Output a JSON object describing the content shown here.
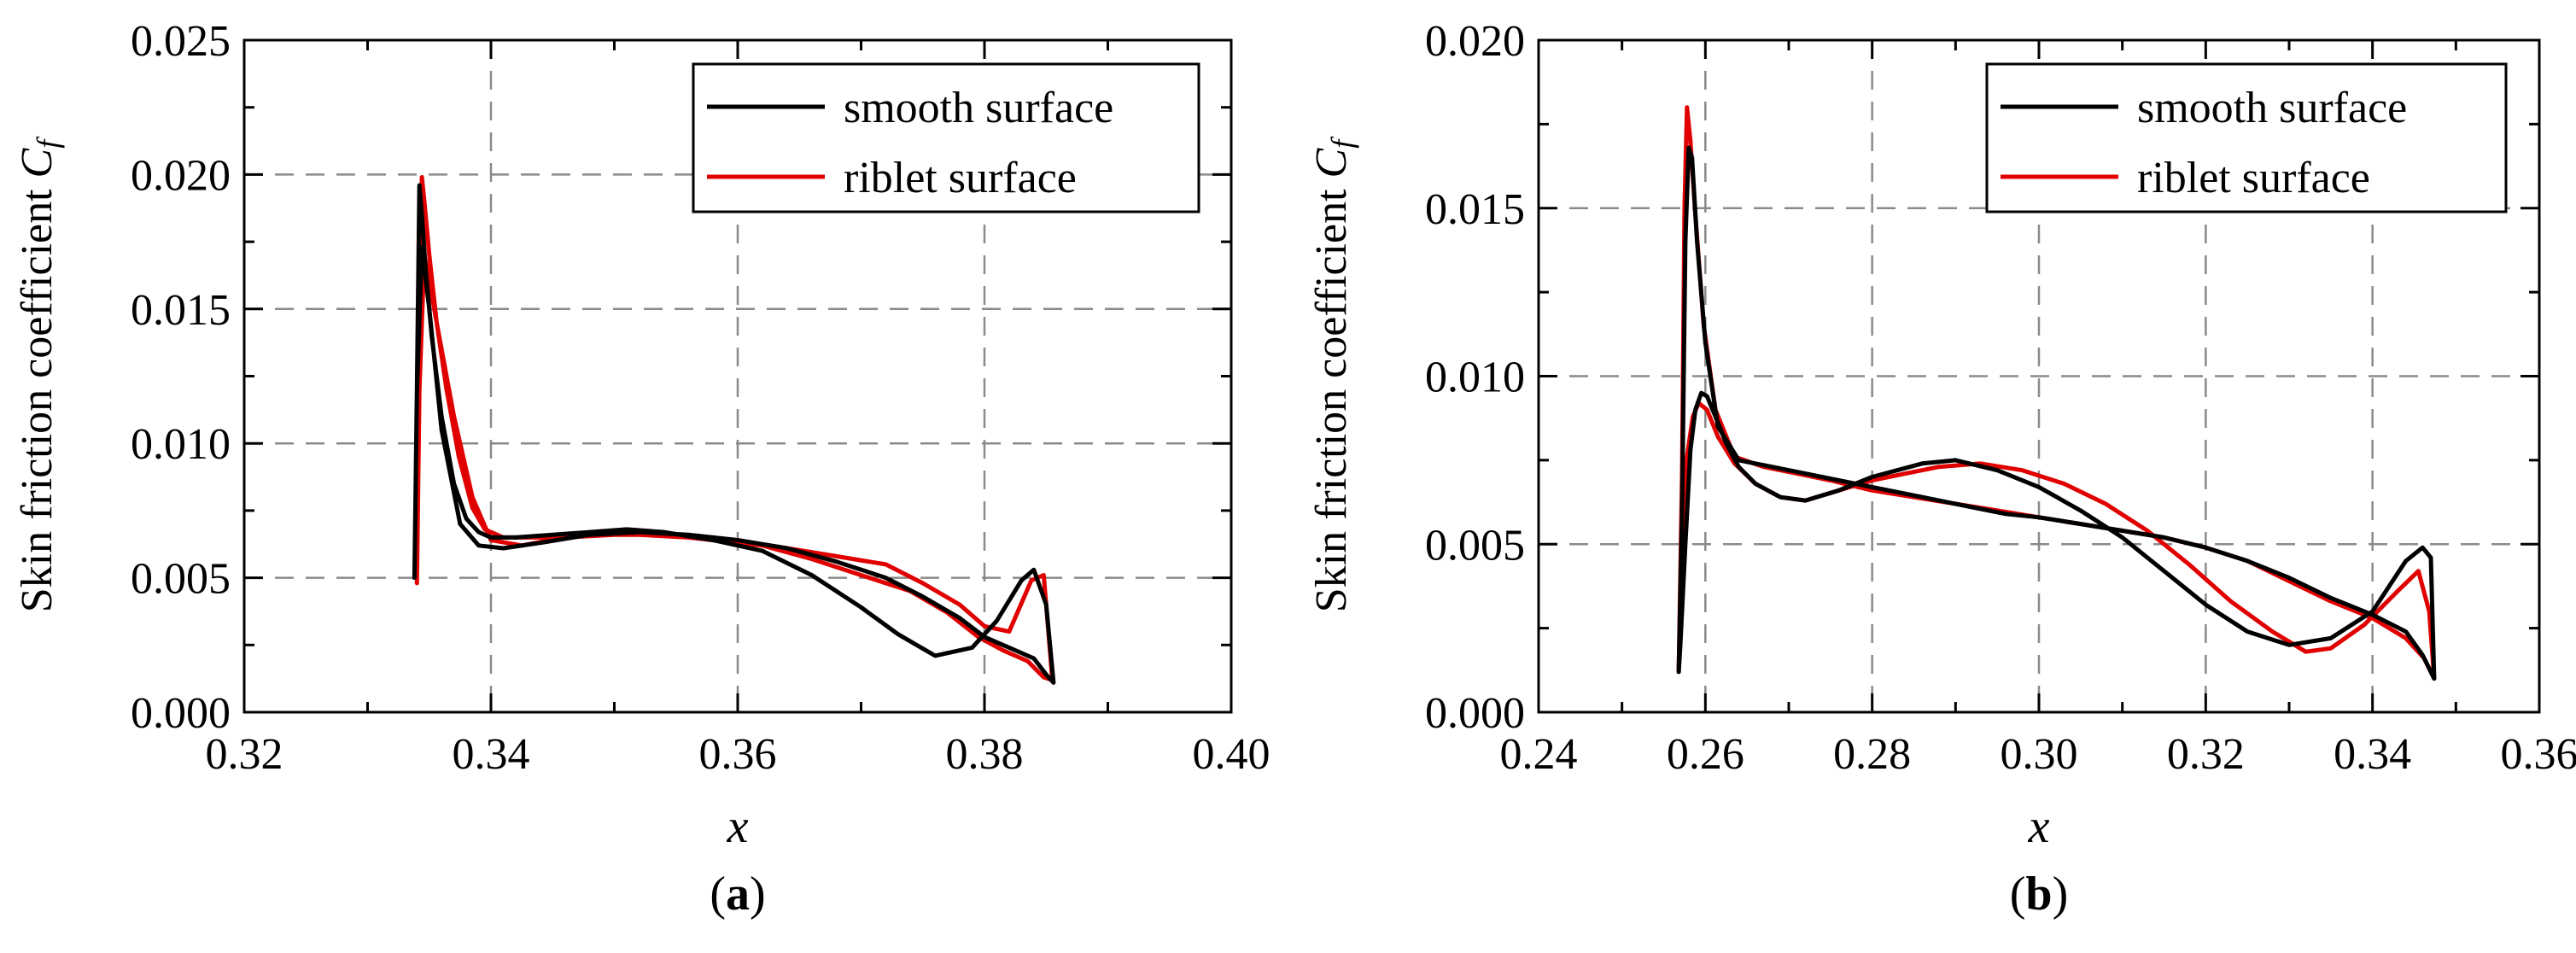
{
  "chart_data": [
    {
      "type": "line",
      "panel_label": "(a)",
      "panel_letter": "a",
      "xlabel": "x",
      "ylabel_main": "Skin friction coefficient ",
      "ylabel_symbol": "C",
      "ylabel_subscript": "f",
      "xlim": [
        0.32,
        0.4
      ],
      "ylim": [
        0.0,
        0.025
      ],
      "xticks": [
        "0.32",
        "0.34",
        "0.36",
        "0.38",
        "0.40"
      ],
      "yticks": [
        "0.000",
        "0.005",
        "0.010",
        "0.015",
        "0.020",
        "0.025"
      ],
      "grid": true,
      "legend_position": "top-right",
      "series": [
        {
          "name": "smooth surface",
          "color": "#000000",
          "x": [
            0.3338,
            0.334,
            0.3342,
            0.3344,
            0.3347,
            0.3352,
            0.336,
            0.337,
            0.338,
            0.339,
            0.34,
            0.342,
            0.345,
            0.348,
            0.351,
            0.354,
            0.358,
            0.362,
            0.366,
            0.37,
            0.373,
            0.376,
            0.379,
            0.381,
            0.383,
            0.384,
            0.385,
            0.3856,
            0.385,
            0.384,
            0.382,
            0.38,
            0.378,
            0.375,
            0.372,
            0.368,
            0.364,
            0.36,
            0.356,
            0.352,
            0.348,
            0.344,
            0.341,
            0.339,
            0.3375,
            0.336,
            0.335,
            0.3344,
            0.334,
            0.3338
          ],
          "y": [
            0.005,
            0.012,
            0.0196,
            0.0185,
            0.0165,
            0.014,
            0.011,
            0.0085,
            0.0072,
            0.0067,
            0.0065,
            0.0065,
            0.0066,
            0.0067,
            0.0068,
            0.0067,
            0.0064,
            0.006,
            0.0051,
            0.0039,
            0.0029,
            0.0021,
            0.0024,
            0.0034,
            0.0049,
            0.0053,
            0.004,
            0.0011,
            0.0014,
            0.002,
            0.0024,
            0.0028,
            0.0035,
            0.0043,
            0.005,
            0.0056,
            0.0061,
            0.0064,
            0.0066,
            0.0067,
            0.0066,
            0.0063,
            0.0061,
            0.0062,
            0.007,
            0.0105,
            0.015,
            0.0173,
            0.012,
            0.005
          ]
        },
        {
          "name": "riblet surface",
          "color": "#e00000",
          "x": [
            0.334,
            0.3342,
            0.3344,
            0.3346,
            0.335,
            0.3356,
            0.3364,
            0.3374,
            0.3385,
            0.3395,
            0.341,
            0.344,
            0.348,
            0.352,
            0.356,
            0.36,
            0.364,
            0.368,
            0.372,
            0.375,
            0.378,
            0.38,
            0.382,
            0.3838,
            0.3848,
            0.3855,
            0.3848,
            0.3835,
            0.3815,
            0.3795,
            0.377,
            0.374,
            0.37,
            0.366,
            0.362,
            0.358,
            0.354,
            0.35,
            0.346,
            0.3425,
            0.34,
            0.3385,
            0.337,
            0.3358,
            0.335,
            0.3346,
            0.3342,
            0.334
          ],
          "y": [
            0.0048,
            0.014,
            0.0199,
            0.019,
            0.017,
            0.0145,
            0.012,
            0.0095,
            0.0076,
            0.0068,
            0.0065,
            0.0065,
            0.0066,
            0.0066,
            0.0065,
            0.0063,
            0.0061,
            0.0058,
            0.0055,
            0.0048,
            0.004,
            0.0032,
            0.003,
            0.0049,
            0.0051,
            0.0012,
            0.0013,
            0.0019,
            0.0023,
            0.0028,
            0.0037,
            0.0045,
            0.0051,
            0.0057,
            0.0062,
            0.0065,
            0.0066,
            0.0066,
            0.0065,
            0.0062,
            0.0064,
            0.008,
            0.011,
            0.014,
            0.016,
            0.017,
            0.012,
            0.0048
          ]
        }
      ]
    },
    {
      "type": "line",
      "panel_label": "(b)",
      "panel_letter": "b",
      "xlabel": "x",
      "ylabel_main": "Skin friction coefficient ",
      "ylabel_symbol": "C",
      "ylabel_subscript": "f",
      "xlim": [
        0.24,
        0.36
      ],
      "ylim": [
        0.0,
        0.02
      ],
      "xticks": [
        "0.24",
        "0.26",
        "0.28",
        "0.30",
        "0.32",
        "0.34",
        "0.36"
      ],
      "yticks": [
        "0.000",
        "0.005",
        "0.010",
        "0.015",
        "0.020"
      ],
      "grid": true,
      "legend_position": "top-right",
      "series": [
        {
          "name": "smooth surface",
          "color": "#000000",
          "x": [
            0.2568,
            0.2572,
            0.2576,
            0.258,
            0.2584,
            0.259,
            0.26,
            0.2615,
            0.264,
            0.268,
            0.272,
            0.276,
            0.28,
            0.284,
            0.288,
            0.292,
            0.296,
            0.3,
            0.305,
            0.31,
            0.315,
            0.32,
            0.325,
            0.33,
            0.335,
            0.34,
            0.344,
            0.346,
            0.3474,
            0.347,
            0.346,
            0.344,
            0.34,
            0.335,
            0.33,
            0.325,
            0.32,
            0.315,
            0.31,
            0.305,
            0.3,
            0.295,
            0.29,
            0.286,
            0.283,
            0.28,
            0.276,
            0.272,
            0.269,
            0.266,
            0.264,
            0.2625,
            0.2612,
            0.2602,
            0.2595,
            0.2588,
            0.2582,
            0.2576,
            0.257,
            0.2568
          ],
          "y": [
            0.0012,
            0.006,
            0.014,
            0.0168,
            0.0165,
            0.014,
            0.011,
            0.0085,
            0.0075,
            0.0073,
            0.0071,
            0.0069,
            0.0067,
            0.0065,
            0.0063,
            0.0061,
            0.0059,
            0.0058,
            0.0056,
            0.0054,
            0.0052,
            0.0049,
            0.0045,
            0.004,
            0.0034,
            0.0029,
            0.0024,
            0.0017,
            0.001,
            0.0046,
            0.0049,
            0.0045,
            0.003,
            0.0022,
            0.002,
            0.0024,
            0.0032,
            0.0042,
            0.0052,
            0.006,
            0.0067,
            0.0072,
            0.0075,
            0.0074,
            0.0072,
            0.007,
            0.0066,
            0.0063,
            0.0064,
            0.0068,
            0.0073,
            0.008,
            0.0088,
            0.0094,
            0.0095,
            0.009,
            0.0078,
            0.005,
            0.002,
            0.0012
          ]
        },
        {
          "name": "riblet surface",
          "color": "#e00000",
          "x": [
            0.2568,
            0.2572,
            0.2575,
            0.2578,
            0.2582,
            0.2588,
            0.2598,
            0.2612,
            0.2635,
            0.267,
            0.271,
            0.275,
            0.28,
            0.285,
            0.29,
            0.295,
            0.3,
            0.305,
            0.31,
            0.315,
            0.32,
            0.325,
            0.33,
            0.335,
            0.34,
            0.344,
            0.3462,
            0.3474,
            0.3468,
            0.3455,
            0.343,
            0.339,
            0.335,
            0.332,
            0.328,
            0.323,
            0.318,
            0.313,
            0.308,
            0.303,
            0.298,
            0.293,
            0.288,
            0.284,
            0.28,
            0.276,
            0.272,
            0.269,
            0.266,
            0.2635,
            0.2615,
            0.2602,
            0.2592,
            0.2585,
            0.2578,
            0.2572,
            0.2568
          ],
          "y": [
            0.0012,
            0.007,
            0.015,
            0.018,
            0.017,
            0.0148,
            0.0115,
            0.009,
            0.0076,
            0.0073,
            0.0071,
            0.0069,
            0.0066,
            0.0064,
            0.0062,
            0.006,
            0.0058,
            0.0056,
            0.0054,
            0.0052,
            0.0049,
            0.0045,
            0.0039,
            0.0033,
            0.0028,
            0.0022,
            0.0016,
            0.001,
            0.003,
            0.0042,
            0.0036,
            0.0026,
            0.0019,
            0.0018,
            0.0024,
            0.0033,
            0.0044,
            0.0054,
            0.0062,
            0.0068,
            0.0072,
            0.0074,
            0.0073,
            0.0071,
            0.0069,
            0.0066,
            0.0063,
            0.0064,
            0.0068,
            0.0074,
            0.0082,
            0.009,
            0.0092,
            0.0088,
            0.0076,
            0.004,
            0.0012
          ]
        }
      ]
    }
  ]
}
